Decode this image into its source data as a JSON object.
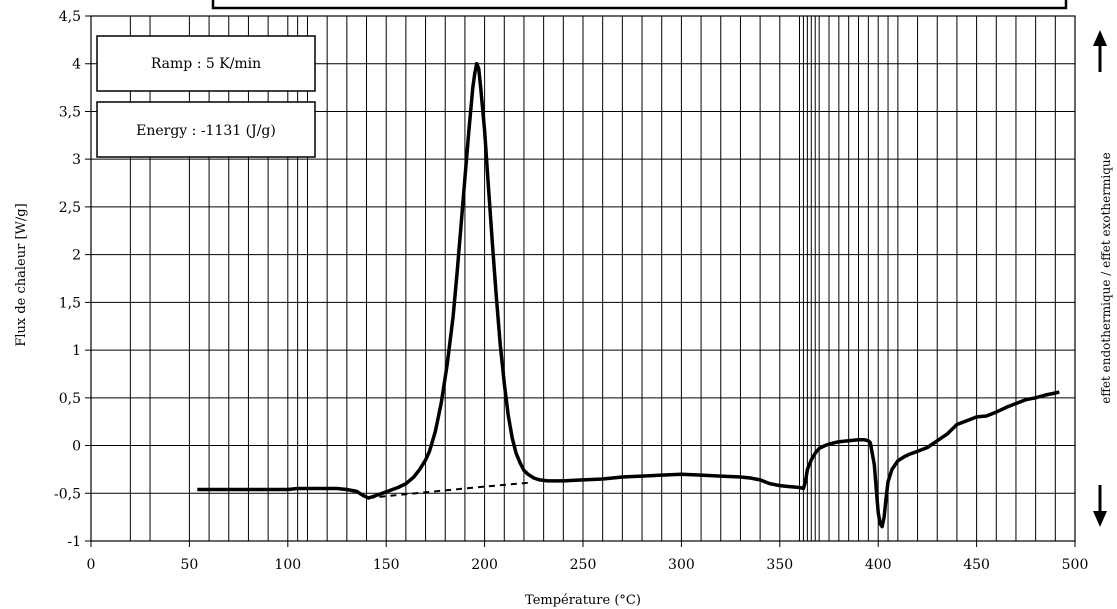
{
  "chart_data": {
    "type": "line",
    "xlabel": "Température (°C)",
    "ylabel": "Flux de chaleur [W/g]",
    "right_label": "effet endothermique / effet exothermique",
    "xlim": [
      0,
      500
    ],
    "ylim": [
      -1,
      4.5
    ],
    "x_ticks": [
      "0",
      "50",
      "100",
      "150",
      "200",
      "250",
      "300",
      "350",
      "400",
      "450",
      "500"
    ],
    "y_ticks": [
      "-1",
      "-0,5",
      "0",
      "0,5",
      "1",
      "1,5",
      "2",
      "2,5",
      "3",
      "3,5",
      "4",
      "4,5"
    ],
    "vertical_gridlines": [
      20,
      30,
      50,
      60,
      70,
      80,
      90,
      100,
      105,
      110,
      120,
      130,
      140,
      150,
      160,
      170,
      180,
      190,
      200,
      210,
      220,
      230,
      240,
      250,
      260,
      270,
      280,
      290,
      300,
      310,
      320,
      330,
      340,
      350,
      360,
      362,
      364,
      366,
      368,
      370,
      375,
      380,
      385,
      390,
      395,
      400,
      405,
      410,
      420,
      430,
      440,
      450,
      460,
      470,
      480,
      490
    ],
    "annotations": [
      "Ramp : 5 K/min",
      "Energy : -1131 (J/g)"
    ],
    "series": [
      {
        "style": "solid",
        "x": [
          54,
          70,
          90,
          100,
          105,
          115,
          125,
          130,
          135,
          138,
          141,
          144,
          148,
          152,
          156,
          160,
          164,
          167,
          170,
          172,
          175,
          178,
          181,
          184,
          186,
          188,
          190,
          192,
          194,
          195,
          196,
          197,
          198,
          200,
          202,
          204,
          206,
          208,
          210,
          212,
          214,
          216,
          218,
          220,
          222,
          225,
          228,
          232,
          240,
          250,
          260,
          270,
          280,
          290,
          300,
          310,
          320,
          330,
          335,
          340,
          345,
          350,
          355,
          360,
          362,
          363,
          364,
          366,
          368,
          370,
          373,
          376,
          380,
          385,
          390,
          393,
          395,
          396,
          398,
          399,
          400,
          401,
          402,
          403,
          404,
          405,
          407,
          410,
          413,
          416,
          420,
          425,
          430,
          435,
          440,
          445,
          450,
          455,
          460,
          465,
          470,
          475,
          480,
          485,
          490,
          492
        ],
        "y": [
          -0.46,
          -0.46,
          -0.46,
          -0.46,
          -0.45,
          -0.45,
          -0.45,
          -0.46,
          -0.48,
          -0.52,
          -0.55,
          -0.53,
          -0.5,
          -0.47,
          -0.44,
          -0.4,
          -0.33,
          -0.25,
          -0.15,
          -0.06,
          0.15,
          0.45,
          0.85,
          1.35,
          1.8,
          2.3,
          2.8,
          3.3,
          3.75,
          3.9,
          4.0,
          3.95,
          3.75,
          3.3,
          2.7,
          2.1,
          1.55,
          1.05,
          0.65,
          0.32,
          0.08,
          -0.08,
          -0.18,
          -0.26,
          -0.3,
          -0.34,
          -0.36,
          -0.37,
          -0.37,
          -0.36,
          -0.35,
          -0.33,
          -0.32,
          -0.31,
          -0.3,
          -0.31,
          -0.32,
          -0.33,
          -0.34,
          -0.36,
          -0.4,
          -0.42,
          -0.43,
          -0.44,
          -0.45,
          -0.38,
          -0.25,
          -0.15,
          -0.08,
          -0.03,
          0.0,
          0.02,
          0.04,
          0.05,
          0.06,
          0.06,
          0.05,
          0.03,
          -0.2,
          -0.45,
          -0.7,
          -0.82,
          -0.85,
          -0.75,
          -0.55,
          -0.38,
          -0.25,
          -0.16,
          -0.12,
          -0.09,
          -0.06,
          -0.02,
          0.05,
          0.12,
          0.22,
          0.26,
          0.3,
          0.31,
          0.35,
          0.4,
          0.44,
          0.48,
          0.5,
          0.53,
          0.55,
          0.56
        ]
      },
      {
        "style": "dashed",
        "x": [
          141,
          160,
          180,
          200,
          222
        ],
        "y": [
          -0.55,
          -0.51,
          -0.47,
          -0.43,
          -0.39
        ]
      }
    ]
  }
}
